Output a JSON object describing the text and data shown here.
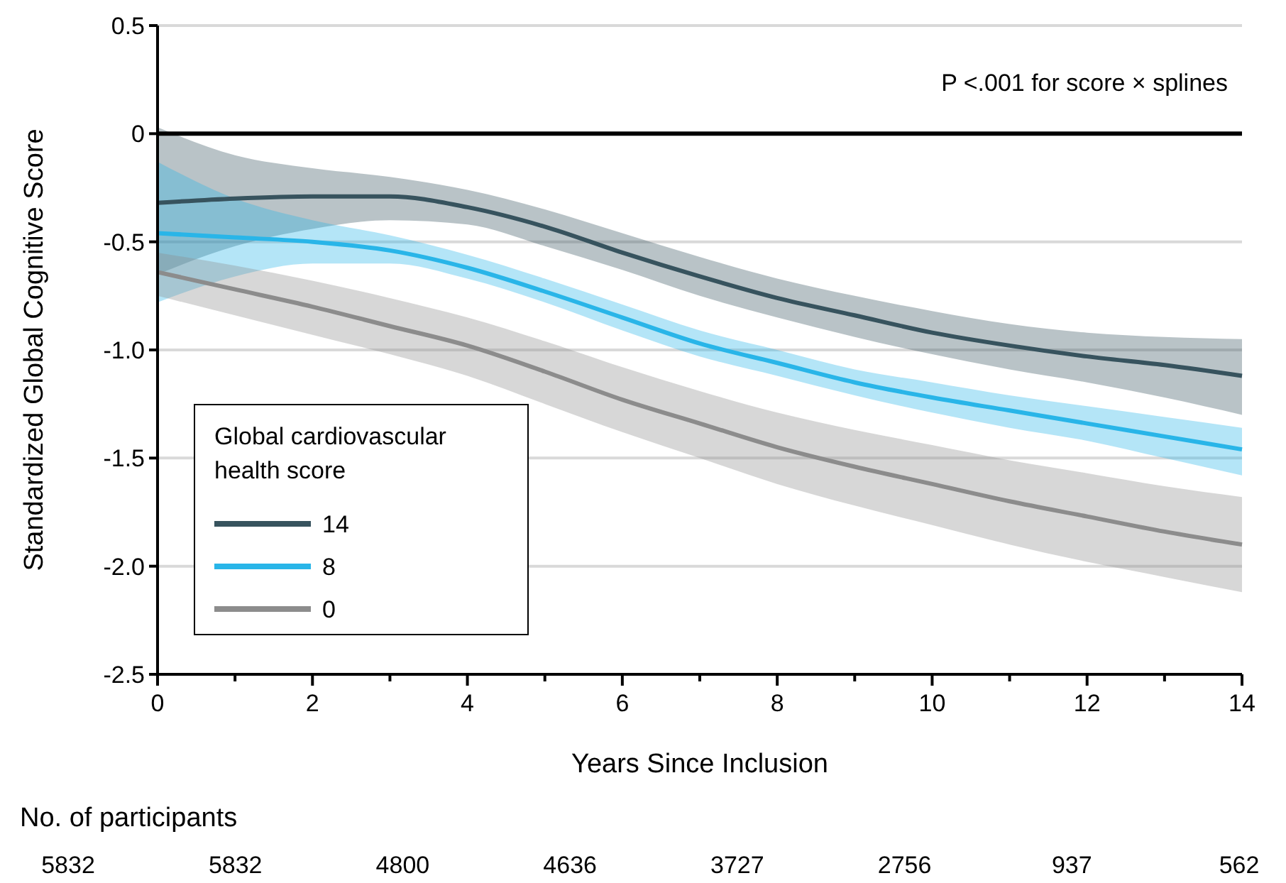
{
  "chart_data": {
    "type": "line",
    "xlabel": "Years Since Inclusion",
    "ylabel": "Standardized Global Cognitive Score",
    "legend_title": "Global cardiovascular health score",
    "legend": "bottom left",
    "grid": "y",
    "line_style": "solid",
    "marker": "none",
    "x": [
      0,
      1,
      2,
      3,
      4,
      5,
      6,
      7,
      8,
      9,
      10,
      11,
      12,
      13,
      14
    ],
    "series": [
      {
        "name": "14",
        "color": "#37535e",
        "values": [
          -0.32,
          -0.3,
          -0.29,
          -0.29,
          -0.34,
          -0.43,
          -0.55,
          -0.66,
          -0.76,
          -0.84,
          -0.92,
          -0.98,
          -1.03,
          -1.07,
          -1.12
        ],
        "lower": [
          -0.65,
          -0.52,
          -0.44,
          -0.4,
          -0.42,
          -0.52,
          -0.63,
          -0.75,
          -0.85,
          -0.94,
          -1.02,
          -1.09,
          -1.15,
          -1.22,
          -1.3
        ],
        "upper": [
          0.03,
          -0.1,
          -0.16,
          -0.2,
          -0.26,
          -0.35,
          -0.46,
          -0.57,
          -0.67,
          -0.75,
          -0.82,
          -0.88,
          -0.92,
          -0.94,
          -0.95
        ]
      },
      {
        "name": "8",
        "color": "#29b5e8",
        "values": [
          -0.46,
          -0.48,
          -0.5,
          -0.54,
          -0.62,
          -0.73,
          -0.85,
          -0.97,
          -1.06,
          -1.15,
          -1.22,
          -1.28,
          -1.34,
          -1.4,
          -1.46
        ],
        "lower": [
          -0.78,
          -0.66,
          -0.6,
          -0.6,
          -0.67,
          -0.78,
          -0.91,
          -1.03,
          -1.12,
          -1.21,
          -1.29,
          -1.36,
          -1.42,
          -1.5,
          -1.58
        ],
        "upper": [
          -0.13,
          -0.3,
          -0.4,
          -0.47,
          -0.56,
          -0.67,
          -0.79,
          -0.91,
          -1.0,
          -1.09,
          -1.15,
          -1.21,
          -1.26,
          -1.31,
          -1.36
        ]
      },
      {
        "name": "0",
        "color": "#8c8c8c",
        "values": [
          -0.64,
          -0.72,
          -0.8,
          -0.89,
          -0.98,
          -1.1,
          -1.23,
          -1.34,
          -1.45,
          -1.54,
          -1.62,
          -1.7,
          -1.77,
          -1.84,
          -1.9
        ],
        "lower": [
          -0.75,
          -0.84,
          -0.93,
          -1.02,
          -1.12,
          -1.25,
          -1.38,
          -1.5,
          -1.62,
          -1.72,
          -1.81,
          -1.9,
          -1.98,
          -2.05,
          -2.12
        ],
        "upper": [
          -0.55,
          -0.61,
          -0.68,
          -0.76,
          -0.85,
          -0.96,
          -1.08,
          -1.19,
          -1.29,
          -1.37,
          -1.44,
          -1.51,
          -1.57,
          -1.63,
          -1.68
        ]
      }
    ],
    "xlim": [
      0,
      14
    ],
    "ylim": [
      -2.5,
      0.5
    ],
    "xticks": [
      0,
      {
        "value": 1,
        "label": null
      },
      2,
      {
        "value": 3,
        "label": null
      },
      4,
      {
        "value": 5,
        "label": null
      },
      6,
      {
        "value": 7,
        "label": null
      },
      8,
      {
        "value": 9,
        "label": null
      },
      10,
      {
        "value": 11,
        "label": null
      },
      12,
      {
        "value": 13,
        "label": null
      },
      14
    ],
    "yticks": [
      {
        "value": 0.5,
        "label": "0.5"
      },
      0,
      {
        "value": -0.5,
        "label": "-0.5"
      },
      {
        "value": -1,
        "label": "-1.0"
      },
      {
        "value": -1.5,
        "label": "-1.5"
      },
      {
        "value": -2,
        "label": "-2.0"
      },
      {
        "value": -2.5,
        "label": "-2.5"
      }
    ],
    "ref_lines": [
      {
        "axis": "y",
        "value": 0,
        "color": "#000000"
      }
    ],
    "annotations": [
      "P <.001 for score × splines",
      "No. of participants",
      "5832",
      "5832",
      "4800",
      "4636",
      "3727",
      "2756",
      "937",
      "562"
    ]
  }
}
